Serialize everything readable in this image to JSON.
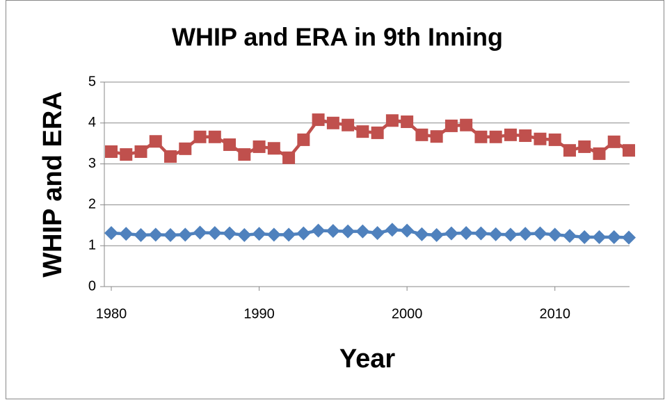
{
  "chart_data": {
    "type": "line",
    "title": "WHIP and ERA in 9th Inning",
    "x_label": "Year",
    "y_label": "WHIP and ERA",
    "x": [
      1980,
      1981,
      1982,
      1983,
      1984,
      1985,
      1986,
      1987,
      1988,
      1989,
      1990,
      1991,
      1992,
      1993,
      1994,
      1995,
      1996,
      1997,
      1998,
      1999,
      2000,
      2001,
      2002,
      2003,
      2004,
      2005,
      2006,
      2007,
      2008,
      2009,
      2010,
      2011,
      2012,
      2013,
      2014,
      2015
    ],
    "series": [
      {
        "color": "#4f81bd",
        "marker": "diamond",
        "values": [
          1.31,
          1.29,
          1.26,
          1.27,
          1.26,
          1.27,
          1.32,
          1.31,
          1.3,
          1.26,
          1.29,
          1.27,
          1.27,
          1.3,
          1.37,
          1.36,
          1.35,
          1.35,
          1.31,
          1.39,
          1.37,
          1.28,
          1.26,
          1.3,
          1.31,
          1.3,
          1.28,
          1.27,
          1.29,
          1.3,
          1.27,
          1.24,
          1.21,
          1.21,
          1.21,
          1.2
        ]
      },
      {
        "color": "#c0504d",
        "marker": "square",
        "values": [
          3.3,
          3.23,
          3.3,
          3.55,
          3.18,
          3.37,
          3.66,
          3.66,
          3.47,
          3.23,
          3.42,
          3.38,
          3.15,
          3.59,
          4.08,
          4.0,
          3.95,
          3.79,
          3.76,
          4.06,
          4.03,
          3.71,
          3.67,
          3.93,
          3.95,
          3.66,
          3.66,
          3.71,
          3.69,
          3.61,
          3.59,
          3.33,
          3.42,
          3.25,
          3.54,
          3.33
        ]
      }
    ],
    "xlim": [
      1980,
      2015
    ],
    "xticks": [
      1980,
      1990,
      2000,
      2010
    ],
    "ylim": [
      0,
      5
    ],
    "yticks": [
      0,
      1,
      2,
      3,
      4,
      5
    ],
    "grid": true
  }
}
